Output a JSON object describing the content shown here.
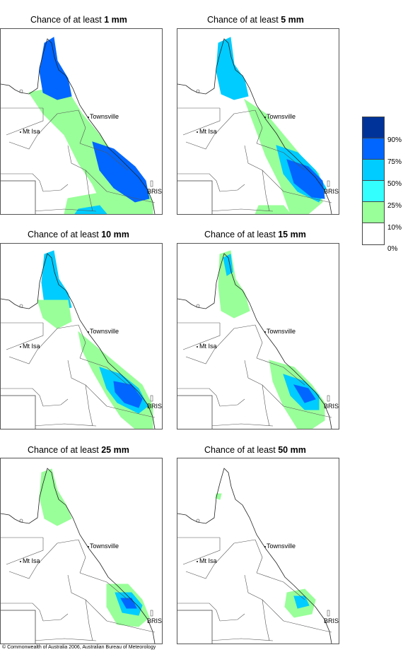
{
  "panels": [
    {
      "prefix": "Chance of at least ",
      "amount": "1 mm"
    },
    {
      "prefix": "Chance of at least ",
      "amount": "5 mm"
    },
    {
      "prefix": "Chance of at least ",
      "amount": "10 mm"
    },
    {
      "prefix": "Chance of at least ",
      "amount": "15 mm"
    },
    {
      "prefix": "Chance of at least ",
      "amount": "25 mm"
    },
    {
      "prefix": "Chance of at least ",
      "amount": "50 mm"
    }
  ],
  "places": {
    "townsville": "Townsville",
    "mt_isa": "Mt Isa",
    "bris": "BRIS"
  },
  "legend": {
    "labels": [
      "90%",
      "75%",
      "50%",
      "25%",
      "10%",
      "0%"
    ],
    "colors": [
      "#003399",
      "#0066ff",
      "#00ccff",
      "#33ffff",
      "#99ff99",
      "#ffffff"
    ]
  },
  "copyright": "© Commonwealth of Australia 2006, Australian Bureau of Meteorology"
}
